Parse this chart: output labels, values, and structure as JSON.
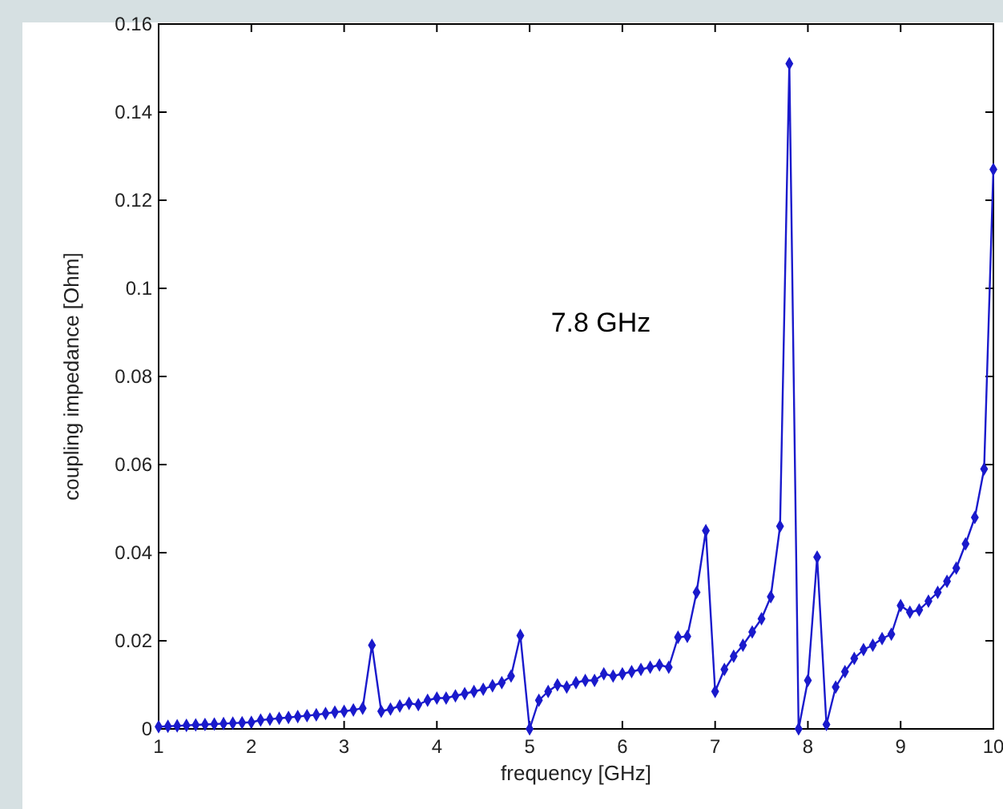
{
  "chart_data": {
    "type": "line",
    "xlabel": "frequency [GHz]",
    "ylabel": "coupling impedance [Ohm]",
    "annotations": [
      "7.8 GHz"
    ],
    "xlim": [
      1,
      10
    ],
    "xticks": [
      1,
      2,
      3,
      4,
      5,
      6,
      7,
      8,
      9,
      10
    ],
    "ylim": [
      0,
      0.16
    ],
    "yticks": [
      0,
      0.02,
      0.04,
      0.06,
      0.08,
      0.1,
      0.12,
      0.14,
      0.16
    ],
    "marker": "diamond",
    "line_style": "solid",
    "x": [
      1,
      1.1,
      1.2,
      1.3,
      1.4,
      1.5,
      1.6,
      1.7,
      1.8,
      1.9,
      2,
      2.1,
      2.2,
      2.3,
      2.4,
      2.5,
      2.6,
      2.7,
      2.8,
      2.9,
      3,
      3.1,
      3.2,
      3.3,
      3.4,
      3.5,
      3.6,
      3.7,
      3.8,
      3.9,
      4,
      4.1,
      4.2,
      4.3,
      4.4,
      4.5,
      4.6,
      4.7,
      4.8,
      4.9,
      5,
      5.1,
      5.2,
      5.3,
      5.4,
      5.5,
      5.6,
      5.7,
      5.8,
      5.9,
      6,
      6.1,
      6.2,
      6.3,
      6.4,
      6.5,
      6.6,
      6.7,
      6.8,
      6.9,
      7,
      7.1,
      7.2,
      7.3,
      7.4,
      7.5,
      7.6,
      7.7,
      7.8,
      7.9,
      8,
      8.1,
      8.2,
      8.3,
      8.4,
      8.5,
      8.6,
      8.7,
      8.8,
      8.9,
      9,
      9.1,
      9.2,
      9.3,
      9.4,
      9.5,
      9.6,
      9.7,
      9.8,
      9.9,
      10
    ],
    "series": [
      {
        "color": "#1a1acc",
        "values": [
          0.0005,
          0.0006,
          0.0007,
          0.0008,
          0.0009,
          0.001,
          0.0011,
          0.0012,
          0.0013,
          0.0014,
          0.0015,
          0.002,
          0.0022,
          0.0024,
          0.0026,
          0.0028,
          0.003,
          0.0032,
          0.0035,
          0.0038,
          0.004,
          0.0043,
          0.0047,
          0.019,
          0.004,
          0.0045,
          0.0052,
          0.0058,
          0.0055,
          0.0065,
          0.007,
          0.007,
          0.0075,
          0.008,
          0.0085,
          0.009,
          0.0098,
          0.0105,
          0.012,
          0.0212,
          0,
          0.0065,
          0.0085,
          0.01,
          0.0095,
          0.0105,
          0.011,
          0.011,
          0.0125,
          0.012,
          0.0125,
          0.013,
          0.0135,
          0.014,
          0.0145,
          0.014,
          0.0208,
          0.021,
          0.031,
          0.045,
          0.0085,
          0.0135,
          0.0165,
          0.019,
          0.022,
          0.025,
          0.03,
          0.046,
          0.151,
          0,
          0.011,
          0.039,
          0.001,
          0.0095,
          0.013,
          0.016,
          0.018,
          0.019,
          0.0205,
          0.0215,
          0.028,
          0.0265,
          0.027,
          0.029,
          0.031,
          0.0335,
          0.0365,
          0.042,
          0.048,
          0.059,
          0.127
        ]
      }
    ]
  }
}
